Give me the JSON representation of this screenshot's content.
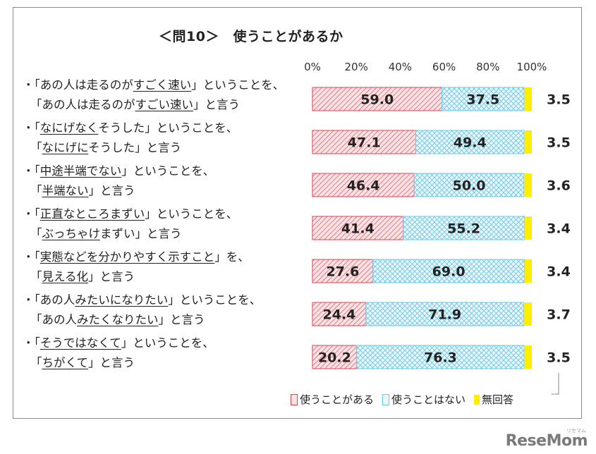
{
  "chart_data": {
    "type": "bar",
    "orientation": "horizontal-stacked-100",
    "title": "＜問10＞　使うことがあるか",
    "xlim": [
      0,
      100
    ],
    "xticks": [
      "0%",
      "20%",
      "40%",
      "60%",
      "80%",
      "100%"
    ],
    "categories": [
      {
        "line1": [
          "・「あの人は走るのが",
          "すごく速い",
          "」ということを、"
        ],
        "line2": [
          "「あの人は走るのが",
          "すごい速い",
          "」と言う"
        ]
      },
      {
        "line1": [
          "・「",
          "なにげなく",
          "そうした」ということを、"
        ],
        "line2": [
          "「",
          "なにげに",
          "そうした」と言う"
        ]
      },
      {
        "line1": [
          "・「",
          "中途半端でない",
          "」ということを、"
        ],
        "line2": [
          "「",
          "半端ない",
          "」と言う"
        ]
      },
      {
        "line1": [
          "・「",
          "正直なところまずい",
          "」ということを、"
        ],
        "line2": [
          "「",
          "ぶっちゃけ",
          "まずい」と言う"
        ]
      },
      {
        "line1": [
          "・「",
          "実態などを分かりやすく示すこと",
          "」を、"
        ],
        "line2": [
          "「",
          "見える化",
          "」と言う"
        ]
      },
      {
        "line1": [
          "・「あの人",
          "みたいになりたい",
          "」ということを、"
        ],
        "line2": [
          "「あの人",
          "みたくなりたい",
          "」と言う"
        ]
      },
      {
        "line1": [
          "・「",
          "そうではなくて",
          "」ということを、"
        ],
        "line2": [
          "「",
          "ちがくて",
          "」と言う"
        ]
      }
    ],
    "series": [
      {
        "name": "使うことがある",
        "values": [
          59.0,
          47.1,
          46.4,
          41.4,
          27.6,
          24.4,
          20.2
        ],
        "labels": [
          "59.0",
          "47.1",
          "46.4",
          "41.4",
          "27.6",
          "24.4",
          "20.2"
        ],
        "color": "#e8727b"
      },
      {
        "name": "使うことはない",
        "values": [
          37.5,
          49.4,
          50.0,
          55.2,
          69.0,
          71.9,
          76.3
        ],
        "labels": [
          "37.5",
          "49.4",
          "50.0",
          "55.2",
          "69.0",
          "71.9",
          "76.3"
        ],
        "color": "#7fd0ec"
      },
      {
        "name": "無回答",
        "values": [
          3.5,
          3.5,
          3.6,
          3.4,
          3.4,
          3.7,
          3.5
        ],
        "labels": [
          "3.5",
          "3.5",
          "3.6",
          "3.4",
          "3.4",
          "3.7",
          "3.5"
        ],
        "color": "#ffee00"
      }
    ],
    "legend_position": "bottom-right"
  },
  "watermark": "ReseMom",
  "watermark_sub": "リセマム"
}
